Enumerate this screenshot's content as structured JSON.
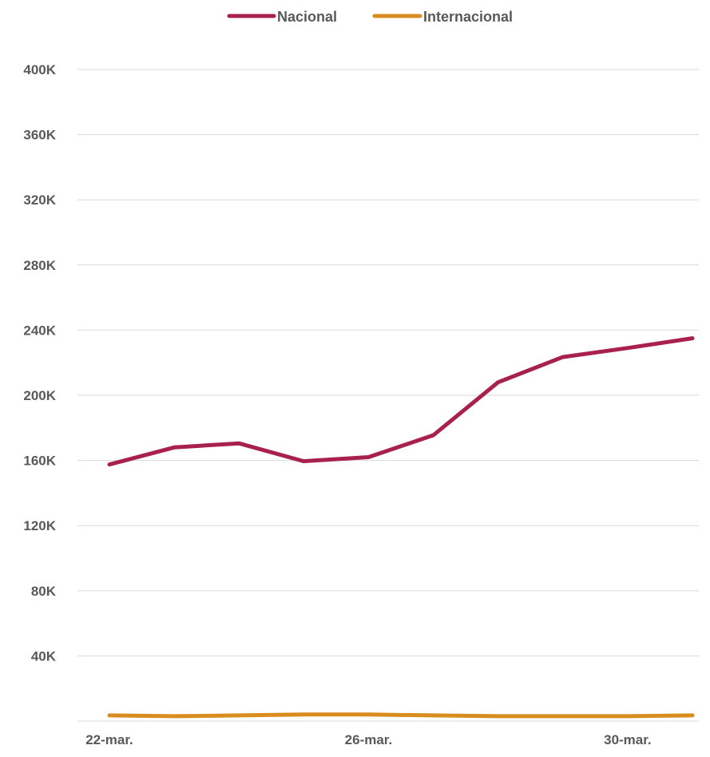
{
  "chart_data": {
    "type": "line",
    "title": "",
    "xlabel": "",
    "ylabel": "",
    "x": [
      "22-mar.",
      "23-mar.",
      "24-mar.",
      "25-mar.",
      "26-mar.",
      "27-mar.",
      "28-mar.",
      "29-mar.",
      "30-mar.",
      "31-mar."
    ],
    "x_tick_labels": [
      "22-mar.",
      "26-mar.",
      "30-mar."
    ],
    "y_tick_labels": [
      "40K",
      "80K",
      "120K",
      "160K",
      "200K",
      "240K",
      "280K",
      "320K",
      "360K",
      "400K"
    ],
    "ylim": [
      0,
      400000
    ],
    "grid": true,
    "legend_position": "top",
    "series": [
      {
        "name": "Nacional",
        "color": "#a8204e",
        "values": [
          157500,
          168000,
          170500,
          159500,
          162000,
          175500,
          208000,
          223500,
          229000,
          235000
        ]
      },
      {
        "name": "Internacional",
        "color": "#d98c1f",
        "values": [
          3500,
          3000,
          3500,
          4000,
          4000,
          3500,
          3000,
          3000,
          3000,
          3500
        ]
      }
    ]
  }
}
